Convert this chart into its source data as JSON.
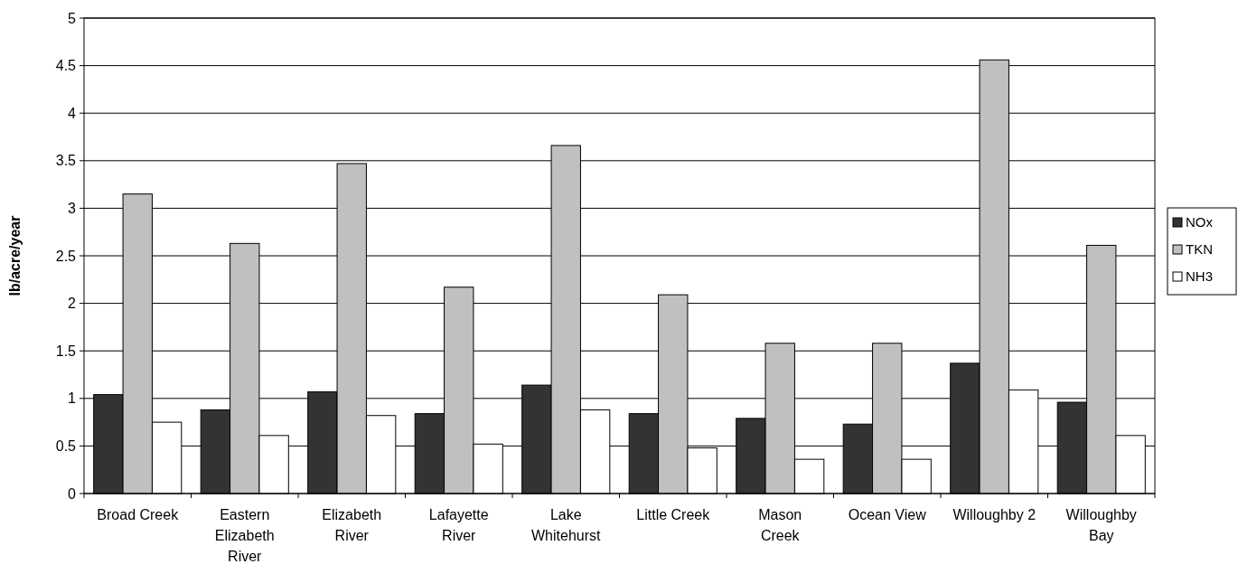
{
  "chart_data": {
    "type": "bar",
    "ylabel": "lb/acre/year",
    "categories": [
      "Broad Creek",
      "Eastern Elizabeth River",
      "Elizabeth River",
      "Lafayette River",
      "Lake Whitehurst",
      "Little Creek",
      "Mason Creek",
      "Ocean View",
      "Willoughby 2",
      "Willoughby Bay"
    ],
    "series": [
      {
        "name": "NOx",
        "color": "#333333",
        "values": [
          1.04,
          0.88,
          1.07,
          0.84,
          1.14,
          0.84,
          0.79,
          0.73,
          1.37,
          0.96
        ]
      },
      {
        "name": "TKN",
        "color": "#c0c0c0",
        "values": [
          3.15,
          2.63,
          3.47,
          2.17,
          3.66,
          2.09,
          1.58,
          1.58,
          4.56,
          2.61
        ]
      },
      {
        "name": "NH3",
        "color": "#ffffff",
        "values": [
          0.75,
          0.61,
          0.82,
          0.52,
          0.88,
          0.48,
          0.36,
          0.36,
          1.09,
          0.61
        ]
      }
    ],
    "ylim": [
      0,
      5
    ],
    "yticks": [
      0,
      0.5,
      1,
      1.5,
      2,
      2.5,
      3,
      3.5,
      4,
      4.5,
      5
    ],
    "grid": "y",
    "legend": "right"
  }
}
